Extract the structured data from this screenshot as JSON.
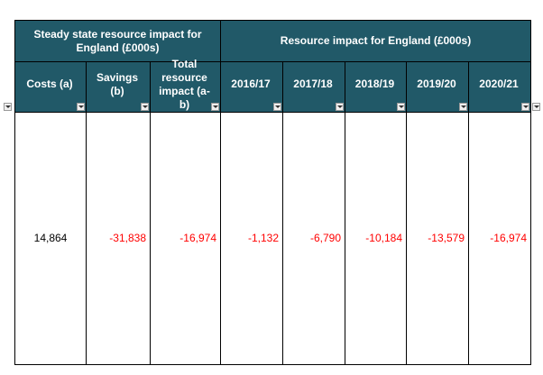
{
  "header": {
    "group1": "Steady state resource impact for England (£000s)",
    "group2": "Resource impact for England (£000s)"
  },
  "columns": [
    "Costs (a)",
    "Savings (b)",
    "Total resource impact (a-b)",
    "2016/17",
    "2017/18",
    "2018/19",
    "2019/20",
    "2020/21"
  ],
  "row": [
    "14,864",
    "-31,838",
    "-16,974",
    "-1,132",
    "-6,790",
    "-10,184",
    "-13,579",
    "-16,974"
  ],
  "filter_icon": "▾",
  "colors": {
    "header_bg": "#215968",
    "negative": "#ff0000"
  }
}
